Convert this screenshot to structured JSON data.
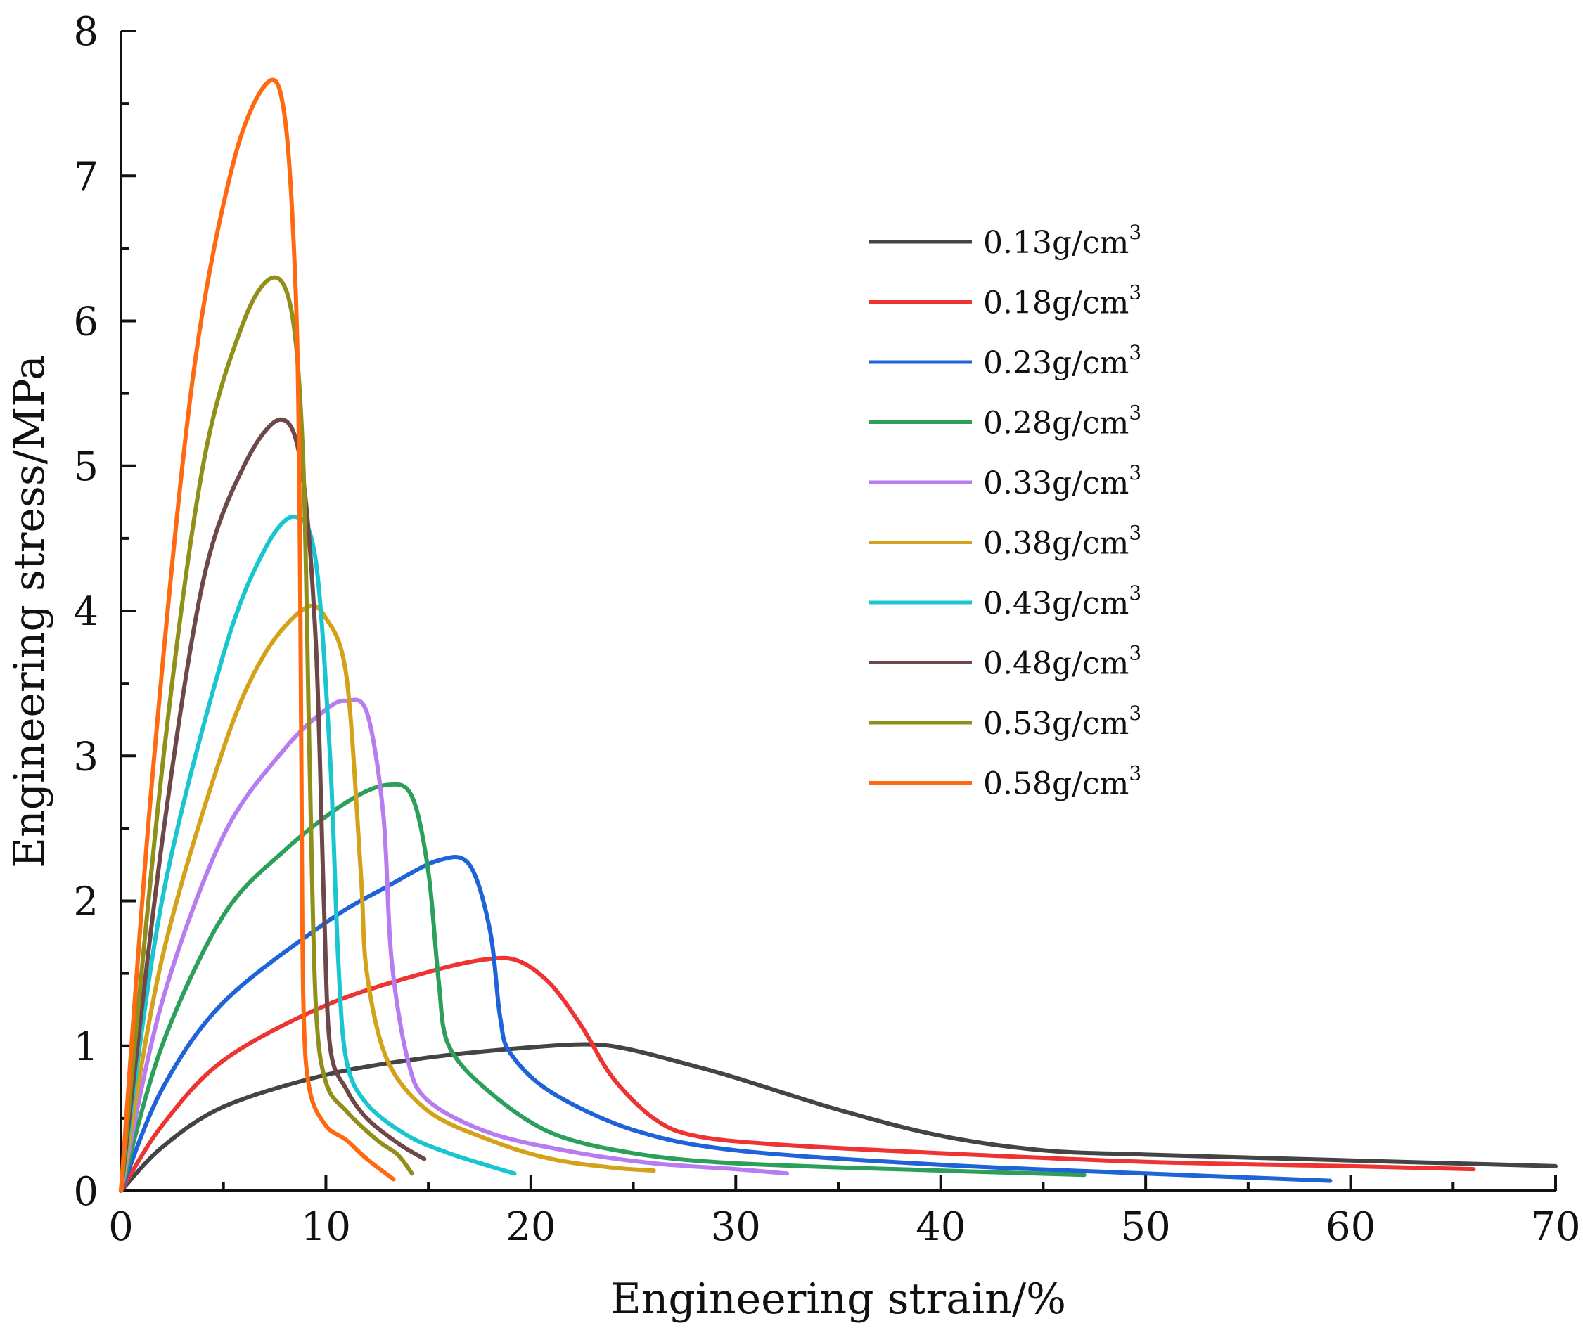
{
  "chart_data": {
    "type": "line",
    "title": "",
    "xlabel": "Engineering strain/%",
    "ylabel": "Engineering stress/MPa",
    "xlim": [
      0,
      70
    ],
    "ylim": [
      0,
      8
    ],
    "xticks": [
      0,
      10,
      20,
      30,
      40,
      50,
      60,
      70
    ],
    "yticks": [
      0,
      1,
      2,
      3,
      4,
      5,
      6,
      7,
      8
    ],
    "legend_position": "upper-right",
    "legend_unit_sup": "3",
    "series": [
      {
        "name": "0.13g/cm",
        "color": "#444444",
        "points": [
          [
            0,
            0
          ],
          [
            2,
            0.3
          ],
          [
            5,
            0.58
          ],
          [
            10,
            0.8
          ],
          [
            15,
            0.92
          ],
          [
            20,
            0.99
          ],
          [
            23,
            1.01
          ],
          [
            25,
            0.97
          ],
          [
            28,
            0.86
          ],
          [
            30,
            0.78
          ],
          [
            35,
            0.56
          ],
          [
            40,
            0.38
          ],
          [
            45,
            0.28
          ],
          [
            50,
            0.25
          ],
          [
            60,
            0.21
          ],
          [
            70,
            0.17
          ]
        ]
      },
      {
        "name": "0.18g/cm",
        "color": "#ee3333",
        "points": [
          [
            0,
            0
          ],
          [
            2,
            0.45
          ],
          [
            5,
            0.9
          ],
          [
            10,
            1.28
          ],
          [
            15,
            1.51
          ],
          [
            18,
            1.6
          ],
          [
            19.5,
            1.58
          ],
          [
            21,
            1.42
          ],
          [
            22.5,
            1.13
          ],
          [
            24,
            0.78
          ],
          [
            26,
            0.5
          ],
          [
            28,
            0.38
          ],
          [
            32,
            0.32
          ],
          [
            40,
            0.26
          ],
          [
            50,
            0.2
          ],
          [
            60,
            0.17
          ],
          [
            66,
            0.15
          ]
        ]
      },
      {
        "name": "0.23g/cm",
        "color": "#1e63d8",
        "points": [
          [
            0,
            0
          ],
          [
            2,
            0.7
          ],
          [
            5,
            1.3
          ],
          [
            10,
            1.85
          ],
          [
            13,
            2.1
          ],
          [
            15.5,
            2.28
          ],
          [
            17,
            2.25
          ],
          [
            18,
            1.8
          ],
          [
            18.5,
            1.2
          ],
          [
            19,
            0.95
          ],
          [
            21,
            0.68
          ],
          [
            25,
            0.42
          ],
          [
            30,
            0.28
          ],
          [
            40,
            0.18
          ],
          [
            50,
            0.12
          ],
          [
            59,
            0.07
          ]
        ]
      },
      {
        "name": "0.28g/cm",
        "color": "#2ca05a",
        "points": [
          [
            0,
            0
          ],
          [
            2,
            1.0
          ],
          [
            5,
            1.9
          ],
          [
            8,
            2.35
          ],
          [
            11,
            2.68
          ],
          [
            13,
            2.8
          ],
          [
            14.2,
            2.72
          ],
          [
            15,
            2.2
          ],
          [
            15.5,
            1.45
          ],
          [
            16,
            1.0
          ],
          [
            18,
            0.68
          ],
          [
            21,
            0.4
          ],
          [
            25,
            0.26
          ],
          [
            30,
            0.19
          ],
          [
            40,
            0.14
          ],
          [
            47,
            0.11
          ]
        ]
      },
      {
        "name": "0.33g/cm",
        "color": "#b67cf0",
        "points": [
          [
            0,
            0
          ],
          [
            2,
            1.3
          ],
          [
            5,
            2.45
          ],
          [
            8,
            3.05
          ],
          [
            10,
            3.32
          ],
          [
            11,
            3.38
          ],
          [
            12,
            3.3
          ],
          [
            12.8,
            2.6
          ],
          [
            13.2,
            1.6
          ],
          [
            14,
            0.9
          ],
          [
            15,
            0.62
          ],
          [
            18,
            0.4
          ],
          [
            22,
            0.27
          ],
          [
            26,
            0.19
          ],
          [
            30,
            0.15
          ],
          [
            32.5,
            0.12
          ]
        ]
      },
      {
        "name": "0.38g/cm",
        "color": "#d4a21a",
        "points": [
          [
            0,
            0
          ],
          [
            2,
            1.6
          ],
          [
            5,
            3.05
          ],
          [
            7,
            3.7
          ],
          [
            9,
            4.02
          ],
          [
            10,
            3.95
          ],
          [
            11,
            3.55
          ],
          [
            11.7,
            2.2
          ],
          [
            12,
            1.5
          ],
          [
            13,
            0.9
          ],
          [
            15,
            0.55
          ],
          [
            18,
            0.35
          ],
          [
            21,
            0.22
          ],
          [
            24,
            0.16
          ],
          [
            26,
            0.14
          ]
        ]
      },
      {
        "name": "0.43g/cm",
        "color": "#19c6d0",
        "points": [
          [
            0,
            0
          ],
          [
            2,
            2.0
          ],
          [
            5,
            3.7
          ],
          [
            7,
            4.42
          ],
          [
            8.5,
            4.65
          ],
          [
            9.5,
            4.35
          ],
          [
            10.2,
            3.0
          ],
          [
            10.6,
            1.6
          ],
          [
            11,
            0.9
          ],
          [
            12,
            0.6
          ],
          [
            14,
            0.38
          ],
          [
            16,
            0.26
          ],
          [
            18,
            0.17
          ],
          [
            19.2,
            0.12
          ]
        ]
      },
      {
        "name": "0.48g/cm",
        "color": "#6e4848",
        "points": [
          [
            0,
            0
          ],
          [
            2,
            2.4
          ],
          [
            4,
            4.2
          ],
          [
            6,
            5.0
          ],
          [
            7.8,
            5.32
          ],
          [
            8.8,
            5.0
          ],
          [
            9.5,
            3.8
          ],
          [
            9.9,
            2.0
          ],
          [
            10.2,
            1.0
          ],
          [
            11,
            0.7
          ],
          [
            12,
            0.5
          ],
          [
            13.5,
            0.33
          ],
          [
            14.8,
            0.22
          ]
        ]
      },
      {
        "name": "0.53g/cm",
        "color": "#8f8f1a",
        "points": [
          [
            0,
            0
          ],
          [
            2,
            2.9
          ],
          [
            4,
            5.0
          ],
          [
            6,
            6.0
          ],
          [
            7.5,
            6.3
          ],
          [
            8.4,
            6.0
          ],
          [
            8.9,
            5.0
          ],
          [
            9.2,
            3.0
          ],
          [
            9.5,
            1.3
          ],
          [
            10,
            0.75
          ],
          [
            11,
            0.55
          ],
          [
            12.5,
            0.35
          ],
          [
            13.5,
            0.25
          ],
          [
            14.2,
            0.12
          ]
        ]
      },
      {
        "name": "0.58g/cm",
        "color": "#ff6a10",
        "points": [
          [
            0,
            0
          ],
          [
            1.5,
            2.8
          ],
          [
            3.5,
            5.6
          ],
          [
            5.5,
            7.1
          ],
          [
            7.2,
            7.65
          ],
          [
            8,
            7.4
          ],
          [
            8.5,
            6.3
          ],
          [
            8.7,
            5.0
          ],
          [
            8.8,
            3.0
          ],
          [
            8.9,
            1.3
          ],
          [
            9.2,
            0.7
          ],
          [
            10,
            0.45
          ],
          [
            11,
            0.35
          ],
          [
            12,
            0.22
          ],
          [
            13.3,
            0.08
          ]
        ]
      }
    ]
  }
}
